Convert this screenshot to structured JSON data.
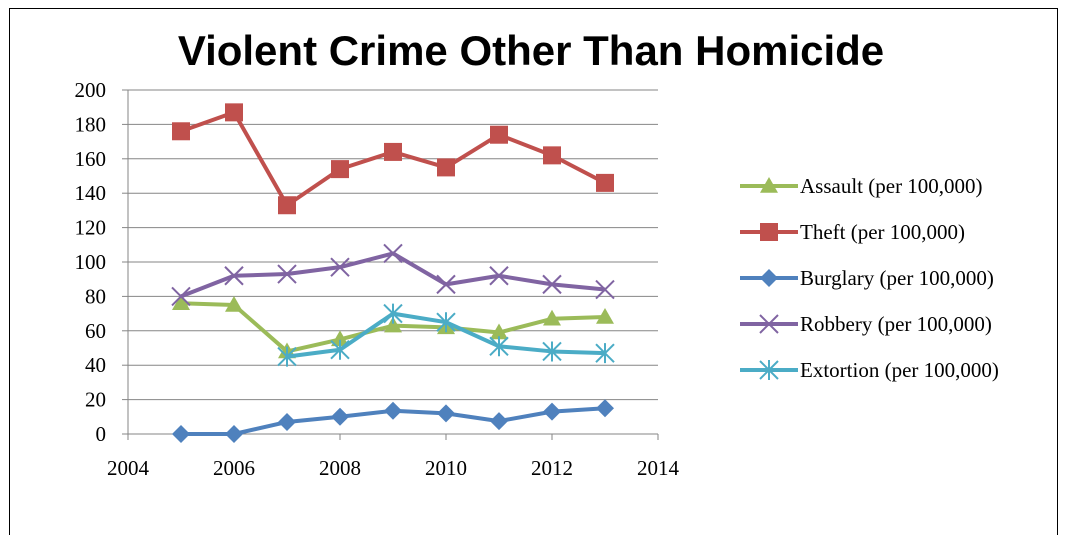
{
  "chart_data": {
    "type": "line",
    "title": "Violent Crime Other Than Homicide",
    "xlabel": "",
    "ylabel": "",
    "xlim": [
      2004,
      2014
    ],
    "ylim": [
      0,
      200
    ],
    "x_ticks": [
      "2004",
      "2006",
      "2008",
      "2010",
      "2012",
      "2014"
    ],
    "y_ticks": [
      "0",
      "20",
      "40",
      "60",
      "80",
      "100",
      "120",
      "140",
      "160",
      "180",
      "200"
    ],
    "grid": "horizontal",
    "legend_position": "right",
    "series": [
      {
        "name": "Assault (per 100,000)",
        "color": "#9bbb59",
        "marker": "triangle",
        "x": [
          2005,
          2006,
          2007,
          2008,
          2009,
          2010,
          2011,
          2012,
          2013
        ],
        "values": [
          76,
          75,
          48,
          55,
          63,
          62,
          59,
          67,
          68
        ]
      },
      {
        "name": "Theft (per 100,000)",
        "color": "#c0504d",
        "marker": "square",
        "x": [
          2005,
          2006,
          2007,
          2008,
          2009,
          2010,
          2011,
          2012,
          2013
        ],
        "values": [
          176,
          187,
          133,
          154,
          164,
          155,
          174,
          162,
          146
        ]
      },
      {
        "name": "Burglary (per 100,000)",
        "color": "#4f81bd",
        "marker": "diamond",
        "x": [
          2005,
          2006,
          2007,
          2008,
          2009,
          2010,
          2011,
          2012,
          2013
        ],
        "values": [
          0,
          0,
          7,
          10,
          13.5,
          12,
          7.5,
          13,
          15
        ]
      },
      {
        "name": "Robbery (per 100,000)",
        "color": "#8064a2",
        "marker": "x",
        "x": [
          2005,
          2006,
          2007,
          2008,
          2009,
          2010,
          2011,
          2012,
          2013
        ],
        "values": [
          80,
          92,
          93,
          97,
          105,
          87,
          92,
          87,
          84
        ]
      },
      {
        "name": "Extortion (per 100,000)",
        "color": "#4bacc6",
        "marker": "star",
        "x": [
          2007,
          2008,
          2009,
          2010,
          2011,
          2012,
          2013
        ],
        "values": [
          45,
          49,
          70,
          65,
          51,
          48,
          47
        ]
      }
    ]
  }
}
